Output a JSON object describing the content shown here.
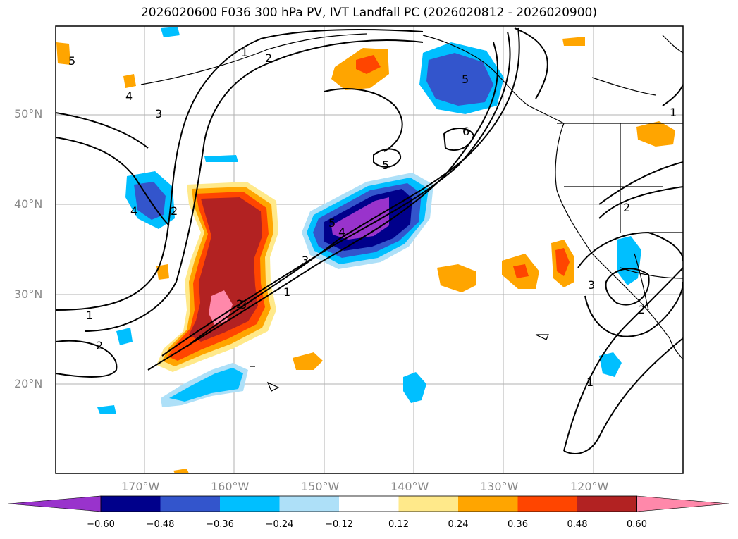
{
  "title": "2026020600 F036 300 hPa PV, IVT Landfall PC (2026020812 - 2026020900)",
  "axes": {
    "lat_labels": [
      "50°N",
      "40°N",
      "30°N",
      "20°N"
    ],
    "lon_labels": [
      "170°W",
      "160°W",
      "150°W",
      "140°W",
      "130°W",
      "120°W"
    ]
  },
  "colorbar": {
    "ticks": [
      "−0.60",
      "−0.48",
      "−0.36",
      "−0.24",
      "−0.12",
      "0.12",
      "0.24",
      "0.36",
      "0.48",
      "0.60"
    ],
    "colors": [
      "#9933cc",
      "#00008b",
      "#3355cc",
      "#00bfff",
      "#aee0f8",
      "#ffffff",
      "#ffe98a",
      "#ffa500",
      "#ff4500",
      "#b22222",
      "#ff88aa"
    ]
  },
  "contour_labels": [
    "5",
    "4",
    "3",
    "2",
    "1",
    "2",
    "1",
    "2",
    "3",
    "5",
    "4",
    "3",
    "2",
    "1",
    "5",
    "6",
    "5",
    "2",
    "3",
    "1",
    "4",
    "1",
    "2"
  ],
  "colors": {
    "grid": "#b0b0b0",
    "coast": "#000000",
    "contour": "#000000"
  }
}
